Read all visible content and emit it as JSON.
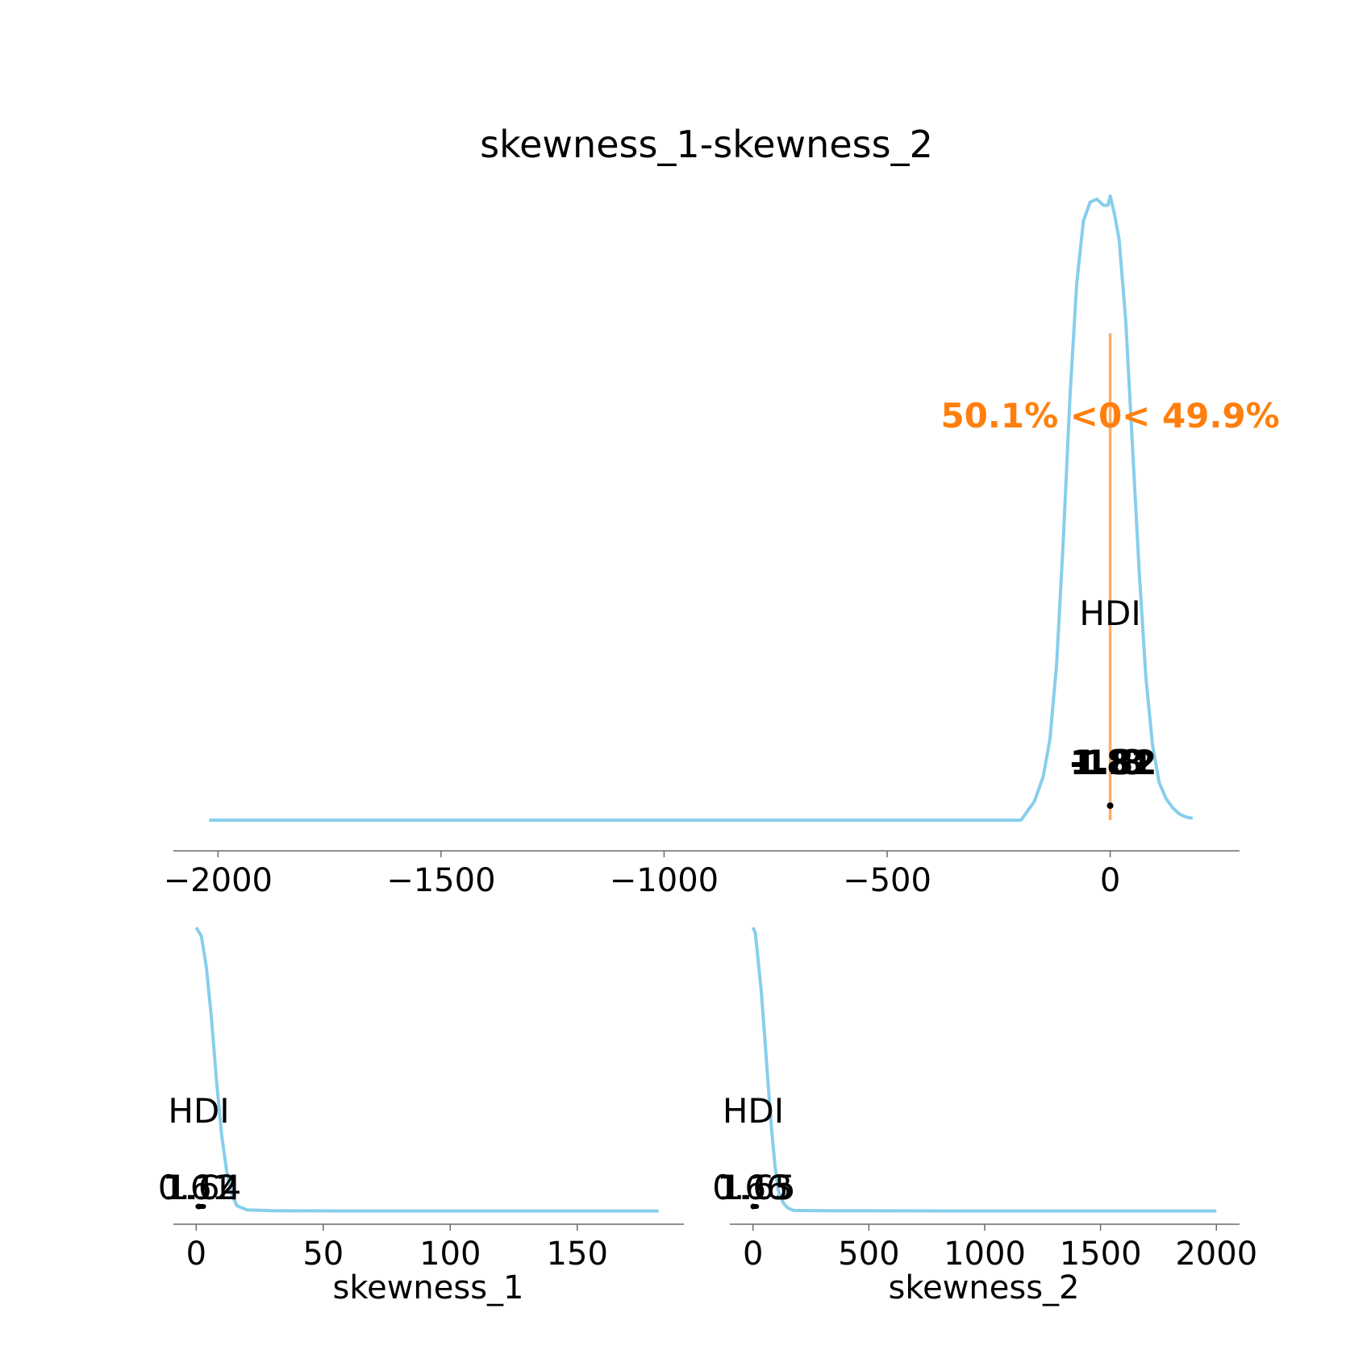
{
  "chart_data": [
    {
      "type": "line",
      "title": "skewness_1-skewness_2",
      "xlabel": "",
      "ylabel": "",
      "xlim": [
        -2100,
        290
      ],
      "ylim": [
        0,
        1
      ],
      "x_ticks": [
        -2000,
        -1500,
        -1000,
        -500,
        0
      ],
      "x_tick_labels": [
        "−2000",
        "−1500",
        "−1000",
        "−500",
        "0"
      ],
      "series_color": "#87ceeb",
      "density": {
        "x": [
          -2020,
          -200,
          -185,
          -170,
          -150,
          -135,
          -120,
          -105,
          -90,
          -75,
          -60,
          -45,
          -30,
          -15,
          -5,
          0,
          10,
          20,
          35,
          50,
          65,
          80,
          95,
          110,
          125,
          140,
          155,
          170,
          185
        ],
        "y": [
          0.0,
          0.0,
          0.015,
          0.03,
          0.07,
          0.13,
          0.25,
          0.45,
          0.68,
          0.86,
          0.96,
          0.99,
          0.995,
          0.985,
          0.985,
          1.0,
          0.97,
          0.93,
          0.8,
          0.6,
          0.4,
          0.23,
          0.12,
          0.06,
          0.035,
          0.02,
          0.01,
          0.005,
          0.003
        ]
      },
      "point_estimate": 0,
      "hdi_label": "HDI",
      "hdi_bounds": [
        "-1.8",
        "1.81",
        "1.82"
      ],
      "hdi_interval": [
        -1.8,
        1.82
      ],
      "ref_val": 0,
      "ref_text": "50.1% <0< 49.9%",
      "ref_color": "#ff7f0e"
    },
    {
      "type": "line",
      "title": "",
      "xlabel": "skewness_1",
      "ylabel": "",
      "xlim": [
        -9,
        192
      ],
      "ylim": [
        0,
        1
      ],
      "x_ticks": [
        0,
        50,
        100,
        150
      ],
      "x_tick_labels": [
        "0",
        "50",
        "100",
        "150"
      ],
      "series_color": "#87ceeb",
      "density": {
        "x": [
          0,
          2,
          4,
          6,
          8,
          10,
          12,
          14,
          16,
          20,
          30,
          60,
          100,
          150,
          182
        ],
        "y": [
          1.0,
          0.97,
          0.86,
          0.68,
          0.46,
          0.27,
          0.14,
          0.06,
          0.02,
          0.005,
          0.002,
          0.001,
          0.001,
          0.001,
          0.001
        ]
      },
      "point_estimate": 1,
      "hdi_label": "HDI",
      "hdi_bounds": [
        "0.61",
        "1.12",
        "1.64"
      ],
      "hdi_interval": [
        0.61,
        1.64
      ]
    },
    {
      "type": "line",
      "title": "",
      "xlabel": "skewness_2",
      "ylabel": "",
      "xlim": [
        -100,
        2100
      ],
      "ylim": [
        0,
        1
      ],
      "x_ticks": [
        0,
        500,
        1000,
        1500,
        2000
      ],
      "x_tick_labels": [
        "0",
        "500",
        "1000",
        "1500",
        "2000"
      ],
      "series_color": "#87ceeb",
      "density": {
        "x": [
          0,
          10,
          20,
          35,
          50,
          65,
          80,
          95,
          110,
          130,
          150,
          175,
          300,
          1000,
          2000
        ],
        "y": [
          1.0,
          0.98,
          0.9,
          0.78,
          0.62,
          0.45,
          0.29,
          0.16,
          0.07,
          0.03,
          0.012,
          0.003,
          0.002,
          0.001,
          0.001
        ]
      },
      "point_estimate": 1,
      "hdi_label": "HDI",
      "hdi_bounds": [
        "0.66",
        "1.13",
        "1.65"
      ],
      "hdi_interval": [
        0.66,
        1.65
      ]
    }
  ]
}
